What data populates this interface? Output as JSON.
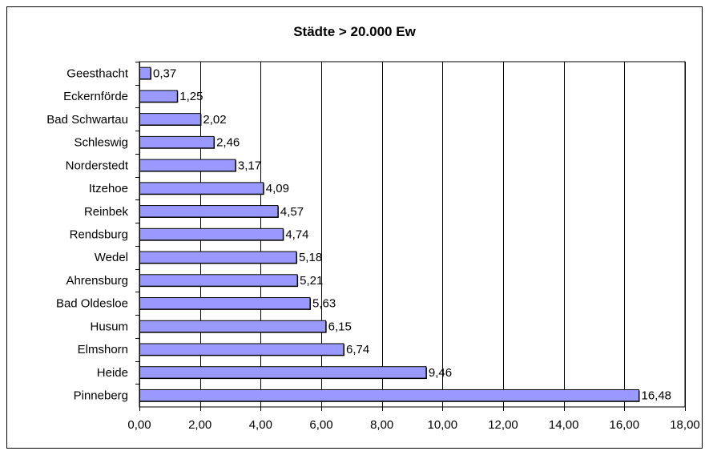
{
  "chart_data": {
    "type": "bar",
    "orientation": "horizontal",
    "title": "Städte > 20.000 Ew",
    "xlabel": "",
    "ylabel": "",
    "xlim": [
      0,
      18
    ],
    "x_ticks": [
      "0,00",
      "2,00",
      "4,00",
      "6,00",
      "8,00",
      "10,00",
      "12,00",
      "14,00",
      "16,00",
      "18,00"
    ],
    "grid": "vertical",
    "legend": "none",
    "categories": [
      "Geesthacht",
      "Eckernförde",
      "Bad Schwartau",
      "Schleswig",
      "Norderstedt",
      "Itzehoe",
      "Reinbek",
      "Rendsburg",
      "Wedel",
      "Ahrensburg",
      "Bad Oldesloe",
      "Husum",
      "Elmshorn",
      "Heide",
      "Pinneberg"
    ],
    "values": [
      0.37,
      1.25,
      2.02,
      2.46,
      3.17,
      4.09,
      4.57,
      4.74,
      5.18,
      5.21,
      5.63,
      6.15,
      6.74,
      9.46,
      16.48
    ],
    "value_labels": [
      "0,37",
      "1,25",
      "2,02",
      "2,46",
      "3,17",
      "4,09",
      "4,57",
      "4,74",
      "5,18",
      "5,21",
      "5,63",
      "6,15",
      "6,74",
      "9,46",
      "16,48"
    ],
    "colors": {
      "bar_fill": "#9999ff",
      "bar_border": "#000000",
      "grid": "#000000",
      "plot_background": "#ffffff"
    }
  }
}
